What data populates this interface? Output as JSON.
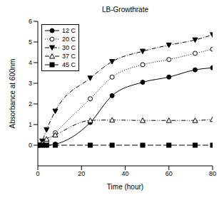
{
  "chart_data": {
    "type": "line",
    "title": "LB-Growthrate",
    "x_label": "Time (hour)",
    "y_label": "Absorbance at 600nm",
    "x": [
      0,
      2,
      4,
      8,
      24,
      34,
      48,
      60,
      72,
      80
    ],
    "series": [
      {
        "name": "12 C",
        "color": "#000000",
        "marker": "circle",
        "line_style": "solid",
        "values": [
          0,
          0,
          0,
          0.05,
          1.1,
          2.4,
          3.05,
          3.3,
          3.65,
          3.75
        ]
      },
      {
        "name": "20 C",
        "color": "#000000",
        "marker": "circle_open",
        "line_style": "dotted",
        "values": [
          0,
          0.05,
          0.15,
          0.6,
          2.25,
          3.3,
          3.9,
          4.15,
          4.45,
          4.65
        ]
      },
      {
        "name": "30 C",
        "color": "#000000",
        "marker": "triangle_down",
        "line_style": "dashdot",
        "values": [
          0,
          0.2,
          0.75,
          1.65,
          3.25,
          4.05,
          4.55,
          4.85,
          5.1,
          5.35
        ]
      },
      {
        "name": "37 C",
        "color": "#000000",
        "marker": "triangle_up_open",
        "line_style": "dashdotdot",
        "values": [
          0,
          0.1,
          0.3,
          0.5,
          1.2,
          1.22,
          1.2,
          1.2,
          1.2,
          1.25
        ]
      },
      {
        "name": "45 C",
        "color": "#000000",
        "marker": "square",
        "line_style": "dashed",
        "values": [
          0,
          0,
          0,
          0,
          0,
          0,
          0,
          0,
          0,
          0
        ]
      }
    ],
    "xlim": [
      0,
      80
    ],
    "xticks": [
      0,
      20,
      40,
      60,
      80
    ],
    "ylim": [
      -1,
      6
    ],
    "yticks": [
      0,
      1,
      2,
      3,
      4,
      5,
      6
    ],
    "legend": "upper left",
    "grid": false
  }
}
